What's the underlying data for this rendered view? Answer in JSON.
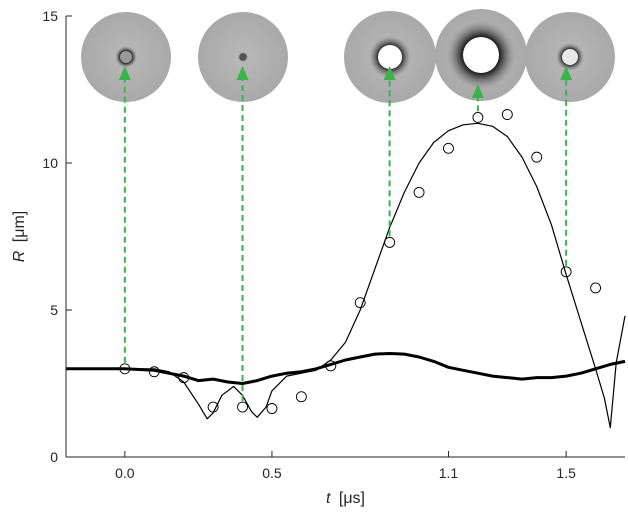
{
  "chart_data": {
    "type": "scatter",
    "title": "",
    "xlabel_symbol": "t",
    "xlabel_unit": "[μs]",
    "ylabel_symbol": "R",
    "ylabel_unit": "[μm]",
    "xlim": [
      -0.2,
      1.7
    ],
    "ylim": [
      0,
      15
    ],
    "xticks": [
      0.0,
      0.5,
      1.1,
      1.5
    ],
    "xtick_labels": [
      "0.0",
      "0.5",
      "1.1",
      "1.5"
    ],
    "yticks": [
      0,
      5,
      10,
      15
    ],
    "ytick_labels": [
      "0",
      "5",
      "10",
      "15"
    ],
    "grid": false,
    "series": [
      {
        "style": "circles",
        "x": [
          0.0,
          0.1,
          0.2,
          0.3,
          0.4,
          0.5,
          0.6,
          0.7,
          0.8,
          0.9,
          1.0,
          1.1,
          1.2,
          1.3,
          1.4,
          1.5,
          1.6
        ],
        "y": [
          3.0,
          2.9,
          2.7,
          1.7,
          1.7,
          1.65,
          2.05,
          3.1,
          5.25,
          7.3,
          9.0,
          10.5,
          11.55,
          11.65,
          10.2,
          6.3,
          5.75
        ]
      },
      {
        "style": "thin-line",
        "x": [
          -0.2,
          -0.1,
          0.0,
          0.1,
          0.15,
          0.2,
          0.25,
          0.28,
          0.3,
          0.33,
          0.37,
          0.4,
          0.43,
          0.45,
          0.48,
          0.5,
          0.55,
          0.6,
          0.65,
          0.7,
          0.75,
          0.8,
          0.85,
          0.9,
          0.95,
          1.0,
          1.05,
          1.1,
          1.15,
          1.2,
          1.25,
          1.3,
          1.35,
          1.4,
          1.45,
          1.5,
          1.55,
          1.6,
          1.63,
          1.65,
          1.67,
          1.7
        ],
        "y": [
          3.0,
          3.0,
          3.0,
          3.0,
          2.9,
          2.55,
          1.8,
          1.3,
          1.5,
          2.1,
          2.4,
          2.1,
          1.55,
          1.35,
          1.7,
          2.25,
          2.75,
          2.85,
          2.95,
          3.3,
          3.9,
          5.0,
          6.4,
          7.8,
          9.0,
          10.0,
          10.7,
          11.1,
          11.3,
          11.35,
          11.25,
          10.9,
          10.2,
          9.2,
          7.9,
          6.2,
          4.6,
          3.0,
          2.0,
          1.0,
          3.2,
          4.8
        ]
      },
      {
        "style": "thick-line",
        "x": [
          -0.2,
          -0.1,
          0.0,
          0.1,
          0.2,
          0.25,
          0.3,
          0.35,
          0.4,
          0.45,
          0.5,
          0.55,
          0.6,
          0.65,
          0.7,
          0.75,
          0.8,
          0.85,
          0.9,
          0.95,
          1.0,
          1.05,
          1.1,
          1.15,
          1.2,
          1.25,
          1.3,
          1.35,
          1.4,
          1.45,
          1.5,
          1.55,
          1.6,
          1.65,
          1.7
        ],
        "y": [
          3.0,
          3.0,
          3.0,
          2.95,
          2.75,
          2.6,
          2.65,
          2.55,
          2.5,
          2.6,
          2.75,
          2.85,
          2.9,
          3.0,
          3.15,
          3.3,
          3.4,
          3.5,
          3.52,
          3.5,
          3.4,
          3.25,
          3.05,
          2.95,
          2.85,
          2.75,
          2.7,
          2.65,
          2.7,
          2.7,
          2.75,
          2.85,
          3.0,
          3.15,
          3.25
        ]
      }
    ],
    "annotations": {
      "arrow_color": "#3cb34a",
      "arrows": [
        {
          "x": 0.0,
          "y": 3.0
        },
        {
          "x": 0.4,
          "y": 1.7
        },
        {
          "x": 0.9,
          "y": 7.3
        },
        {
          "x": 1.2,
          "y": 11.55
        },
        {
          "x": 1.5,
          "y": 6.3
        }
      ]
    },
    "inset_images": [
      {
        "name": "bubble-image-1",
        "core_radius": 6,
        "ring_radius": 11,
        "core_color": "#9a9a9a"
      },
      {
        "name": "bubble-image-2",
        "core_radius": 3,
        "ring_radius": 5,
        "core_color": "#555555"
      },
      {
        "name": "bubble-image-3",
        "core_radius": 12,
        "ring_radius": 21,
        "core_color": "#ffffff"
      },
      {
        "name": "bubble-image-4",
        "core_radius": 18,
        "ring_radius": 34,
        "core_color": "#ffffff"
      },
      {
        "name": "bubble-image-5",
        "core_radius": 8,
        "ring_radius": 14,
        "core_color": "#e9e9e9"
      }
    ]
  }
}
